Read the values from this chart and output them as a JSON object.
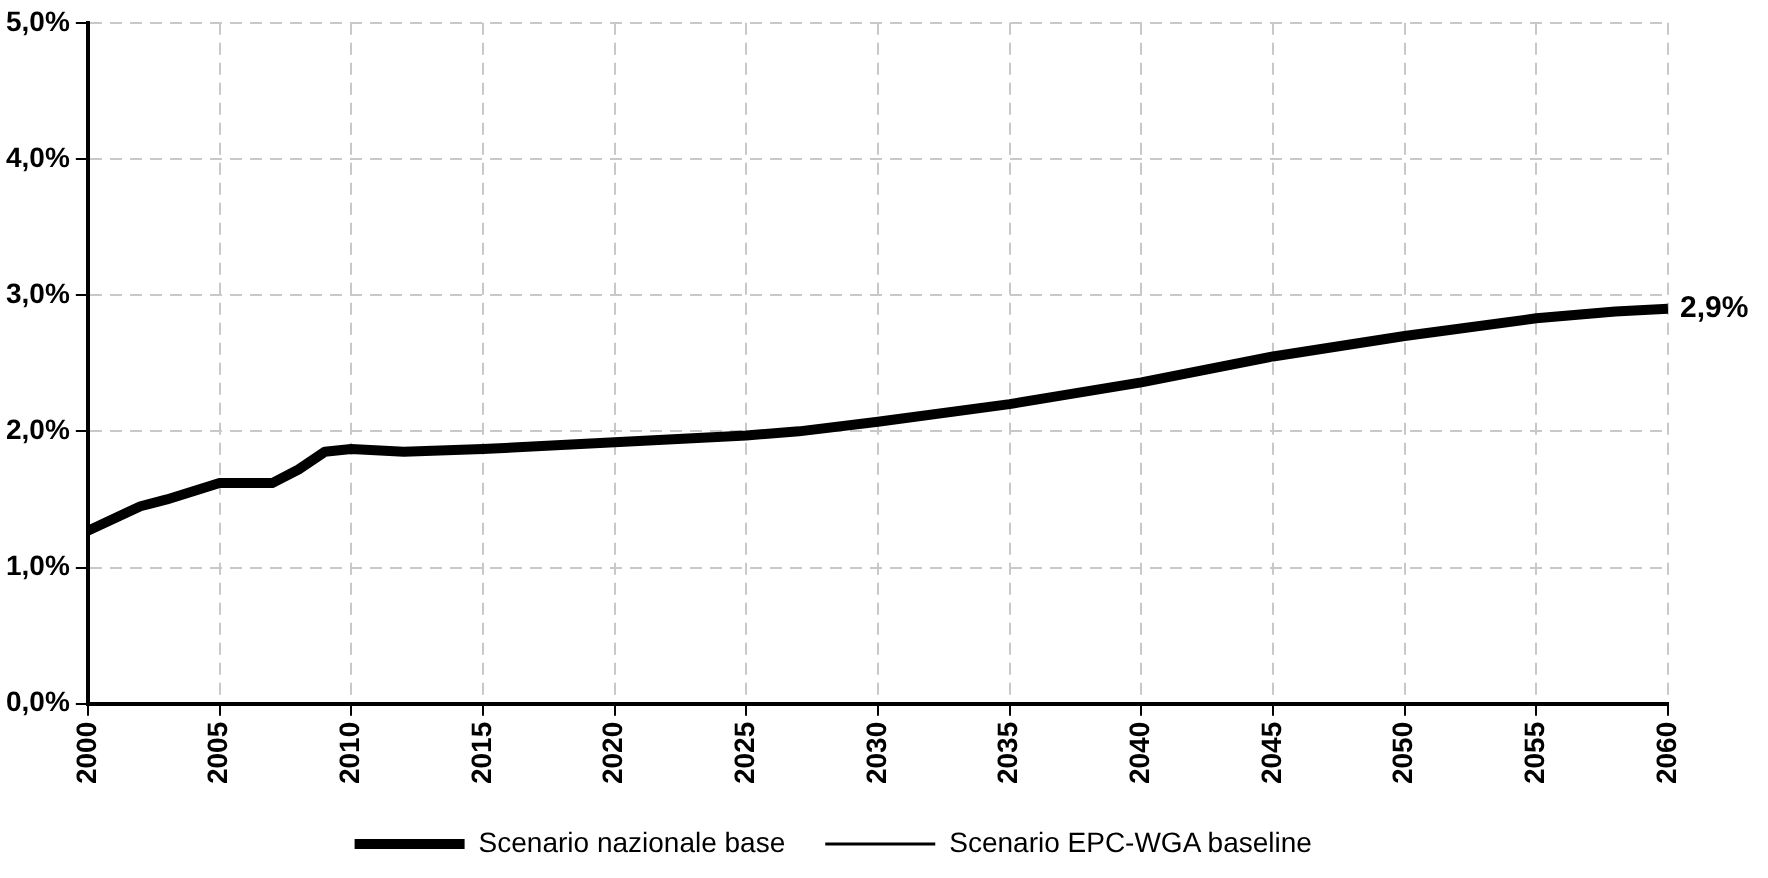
{
  "chart_data": {
    "type": "line",
    "x": [
      2000,
      2002,
      2003,
      2004,
      2005,
      2007,
      2008,
      2009,
      2010,
      2012,
      2015,
      2020,
      2025,
      2027,
      2030,
      2035,
      2040,
      2045,
      2050,
      2055,
      2058,
      2060
    ],
    "series": [
      {
        "name": "Scenario nazionale base",
        "color": "#000000",
        "values": [
          1.27,
          1.45,
          1.5,
          1.56,
          1.62,
          1.62,
          1.72,
          1.85,
          1.87,
          1.85,
          1.87,
          1.92,
          1.97,
          2.0,
          2.07,
          2.2,
          2.36,
          2.55,
          2.7,
          2.83,
          2.88,
          2.9
        ]
      },
      {
        "name": "Scenario EPC-WGA baseline",
        "color": "#000000",
        "values": [
          null,
          null,
          null,
          null,
          null,
          null,
          null,
          null,
          null,
          null,
          null,
          null,
          null,
          null,
          null,
          null,
          null,
          null,
          null,
          null,
          null,
          null
        ]
      }
    ],
    "xlim": [
      2000,
      2060
    ],
    "xticks": [
      2000,
      2005,
      2010,
      2015,
      2020,
      2025,
      2030,
      2035,
      2040,
      2045,
      2050,
      2055,
      2060
    ],
    "ylim": [
      0,
      5
    ],
    "yticks": [
      {
        "value": 0,
        "label": "0,0%"
      },
      {
        "value": 1,
        "label": "1,0%"
      },
      {
        "value": 2,
        "label": "2,0%"
      },
      {
        "value": 3,
        "label": "3,0%"
      },
      {
        "value": 4,
        "label": "4,0%"
      },
      {
        "value": 5,
        "label": "5,0%"
      }
    ],
    "grid": true,
    "legend": "bottom",
    "marker": "none",
    "line_style": "solid",
    "annotations": [
      {
        "text": "2,9%",
        "x": 2060,
        "y": 2.9
      }
    ]
  }
}
